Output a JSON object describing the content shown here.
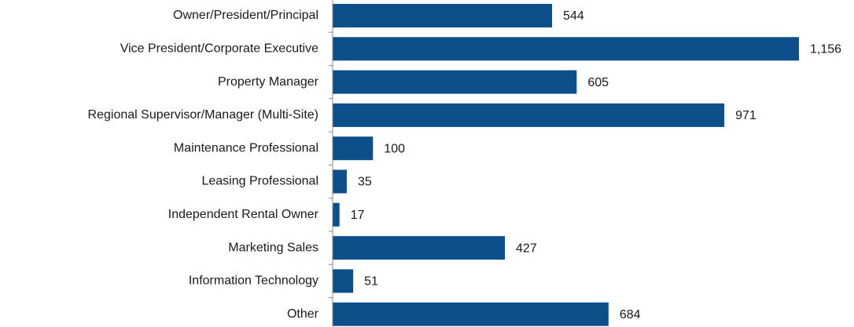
{
  "chart_data": {
    "type": "barh",
    "categories": [
      "Owner/President/Principal",
      "Vice President/Corporate Executive",
      "Property Manager",
      "Regional Supervisor/Manager (Multi-Site)",
      "Maintenance Professional",
      "Leasing Professional",
      "Independent Rental Owner",
      "Marketing Sales",
      "Information Technology",
      "Other"
    ],
    "values": [
      544,
      1156,
      605,
      971,
      100,
      35,
      17,
      427,
      51,
      684
    ],
    "value_labels": [
      "544",
      "1,156",
      "605",
      "971",
      "100",
      "35",
      "17",
      "427",
      "51",
      "684"
    ],
    "color": "#0d4f8b"
  }
}
